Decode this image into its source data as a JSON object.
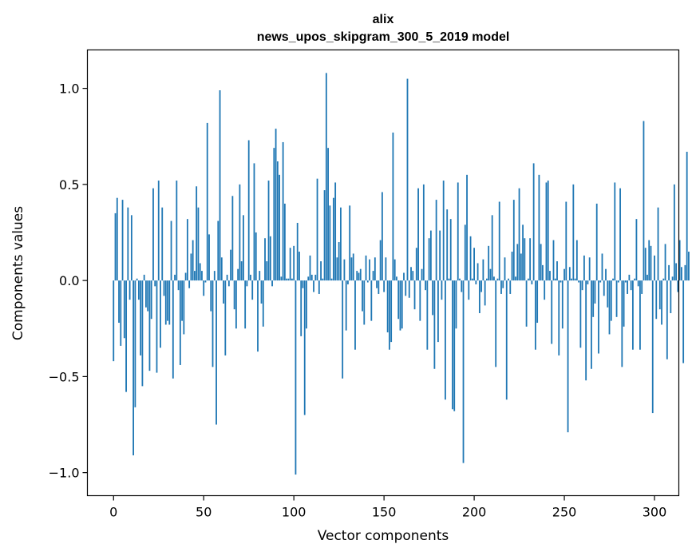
{
  "chart_data": {
    "type": "bar",
    "title": "alix",
    "subtitle": "news_upos_skipgram_300_5_2019 model",
    "xlabel": "Vector components",
    "ylabel": "Components values",
    "xlim": [
      -14.5,
      313.5
    ],
    "ylim": [
      -1.12,
      1.2
    ],
    "xticks": [
      0,
      50,
      100,
      150,
      200,
      250,
      300
    ],
    "xtick_labels": [
      "0",
      "50",
      "100",
      "150",
      "200",
      "250",
      "300"
    ],
    "yticks": [
      -1.0,
      -0.5,
      0.0,
      0.5,
      1.0
    ],
    "ytick_labels": [
      "−1.0",
      "−0.5",
      "0.0",
      "0.5",
      "1.0"
    ],
    "grid": false,
    "bar_color": "#1f77b4",
    "values": [
      -0.42,
      0.35,
      0.43,
      -0.22,
      -0.34,
      0.42,
      -0.3,
      -0.58,
      0.38,
      -0.1,
      0.34,
      -0.91,
      -0.66,
      0.01,
      -0.1,
      -0.39,
      -0.55,
      0.03,
      -0.14,
      -0.16,
      -0.47,
      -0.2,
      0.48,
      -0.03,
      -0.48,
      0.52,
      -0.35,
      0.38,
      -0.08,
      -0.23,
      -0.21,
      -0.23,
      0.31,
      -0.51,
      0.03,
      0.52,
      -0.05,
      -0.44,
      -0.21,
      -0.28,
      0.04,
      0.32,
      -0.04,
      0.14,
      0.21,
      0.05,
      0.49,
      0.38,
      0.09,
      0.05,
      -0.08,
      -0.01,
      0.82,
      0.24,
      -0.16,
      -0.45,
      0.05,
      -0.75,
      0.31,
      0.99,
      0.12,
      -0.12,
      -0.39,
      0.03,
      -0.03,
      0.16,
      0.44,
      -0.15,
      -0.25,
      0.06,
      0.5,
      0.1,
      0.34,
      -0.25,
      -0.03,
      0.73,
      0.03,
      -0.1,
      0.61,
      0.25,
      -0.37,
      0.05,
      -0.12,
      -0.24,
      0.22,
      0.1,
      0.52,
      0.23,
      -0.03,
      0.69,
      0.79,
      0.62,
      0.55,
      0.02,
      0.72,
      0.4,
      0.01,
      0.01,
      0.17,
      0.01,
      0.18,
      -1.01,
      0.3,
      0.15,
      -0.29,
      -0.04,
      -0.7,
      -0.25,
      0.02,
      0.13,
      0.03,
      -0.06,
      0.03,
      0.53,
      -0.07,
      0.1,
      0.01,
      0.47,
      1.08,
      0.69,
      0.39,
      0.01,
      0.43,
      0.51,
      0.12,
      0.2,
      0.38,
      -0.51,
      0.11,
      -0.26,
      -0.02,
      0.39,
      0.12,
      0.14,
      -0.36,
      0.05,
      0.04,
      0.06,
      -0.16,
      -0.23,
      0.13,
      -0.01,
      0.11,
      -0.21,
      0.05,
      0.12,
      -0.04,
      -0.07,
      0.21,
      0.46,
      -0.06,
      0.12,
      -0.27,
      -0.36,
      -0.32,
      0.77,
      0.11,
      0.02,
      -0.2,
      -0.26,
      -0.25,
      0.04,
      -0.08,
      1.05,
      -0.09,
      0.07,
      0.05,
      -0.15,
      0.17,
      0.48,
      -0.21,
      0.06,
      0.5,
      -0.05,
      -0.36,
      0.22,
      0.26,
      -0.18,
      -0.46,
      0.42,
      -0.32,
      0.26,
      -0.1,
      0.52,
      -0.62,
      0.37,
      0.01,
      0.32,
      -0.67,
      -0.68,
      -0.25,
      0.51,
      0.01,
      -0.06,
      -0.95,
      0.29,
      0.55,
      -0.1,
      0.23,
      0.01,
      0.17,
      -0.02,
      0.09,
      -0.17,
      -0.06,
      0.11,
      -0.13,
      0.01,
      0.18,
      0.06,
      0.34,
      0.02,
      -0.45,
      0.01,
      0.41,
      -0.07,
      -0.04,
      0.12,
      -0.62,
      0.01,
      -0.07,
      0.15,
      0.42,
      0.02,
      0.19,
      0.48,
      0.14,
      0.29,
      0.22,
      -0.24,
      0.01,
      0.22,
      -0.02,
      0.61,
      -0.36,
      -0.22,
      0.55,
      0.19,
      0.08,
      -0.1,
      0.51,
      0.52,
      0.05,
      -0.33,
      0.21,
      0.01,
      0.1,
      -0.39,
      -0.01,
      -0.25,
      0.06,
      0.41,
      -0.79,
      0.07,
      0.01,
      0.5,
      0.01,
      0.21,
      -0.01,
      -0.35,
      -0.05,
      0.13,
      -0.52,
      -0.02,
      0.12,
      -0.46,
      -0.19,
      -0.12,
      0.4,
      -0.38,
      -0.01,
      0.14,
      -0.08,
      0.06,
      -0.14,
      -0.28,
      -0.21,
      0.01,
      0.51,
      -0.19,
      -0.01,
      0.48,
      -0.45,
      -0.24,
      -0.01,
      -0.07,
      0.03,
      -0.05,
      -0.36,
      0.01,
      0.32,
      -0.03,
      -0.36,
      -0.07,
      0.83,
      0.17,
      0.03,
      0.21,
      0.18,
      -0.69,
      0.13,
      -0.2,
      0.38,
      -0.15,
      -0.23,
      0.01,
      0.19,
      -0.41,
      0.08,
      -0.17,
      0.02,
      0.5,
      0.09,
      -0.06,
      0.21,
      0.07,
      -0.43,
      0.08,
      0.67,
      0.15
    ]
  }
}
